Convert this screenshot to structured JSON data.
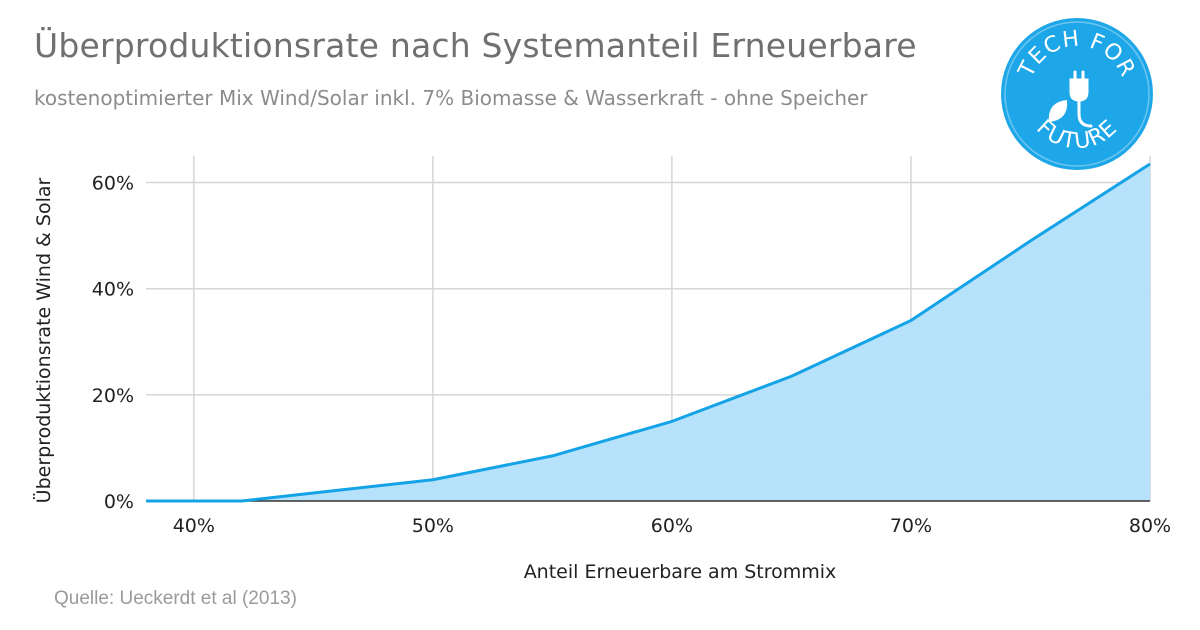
{
  "header": {
    "title": "Überproduktionsrate nach Systemanteil Erneuerbare",
    "subtitle": "kostenoptimierter Mix Wind/Solar inkl. 7% Biomasse & Wasserkraft - ohne Speicher"
  },
  "footer": {
    "source": "Quelle: Ueckerdt et al (2013)"
  },
  "logo": {
    "text_top": "TECH FOR",
    "text_bottom": "FUTURE",
    "color": "#1ea7e8",
    "icon": "plug-leaf-icon"
  },
  "chart_data": {
    "type": "area",
    "xlabel": "Anteil Erneuerbare am Strommix",
    "ylabel": "Überproduktionsrate Wind & Solar",
    "x": [
      38,
      42,
      45,
      50,
      55,
      60,
      65,
      70,
      75,
      80
    ],
    "y": [
      0,
      0,
      1.5,
      4,
      8.5,
      15,
      23.5,
      34,
      49,
      63.5
    ],
    "xlim": [
      38,
      80
    ],
    "ylim": [
      0,
      65
    ],
    "x_ticks": [
      40,
      50,
      60,
      70,
      80
    ],
    "x_tick_labels": [
      "40%",
      "50%",
      "60%",
      "70%",
      "80%"
    ],
    "y_ticks": [
      0,
      20,
      40,
      60
    ],
    "y_tick_labels": [
      "0%",
      "20%",
      "40%",
      "60%"
    ],
    "grid": true,
    "line_color": "#14a3e6",
    "fill_color": "#b3e0fb"
  }
}
